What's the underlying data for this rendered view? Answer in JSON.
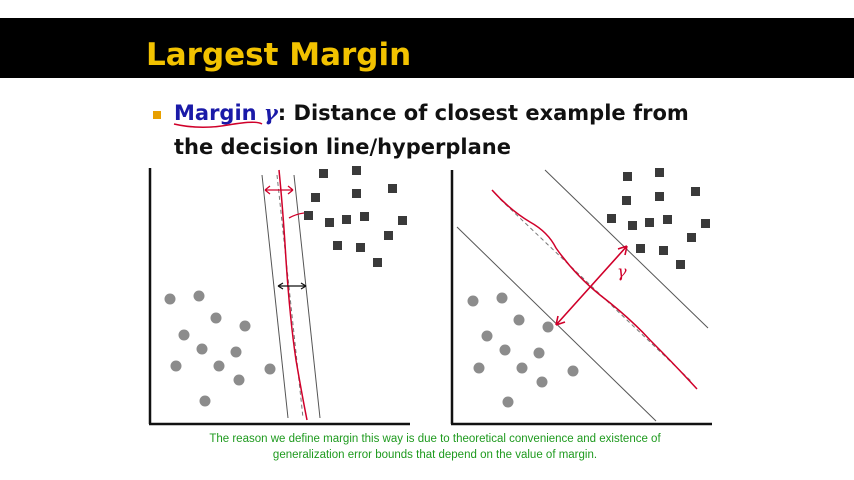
{
  "title": "Largest Margin",
  "bullet": {
    "term": "Margin",
    "symbol": "γ",
    "rest_line1": ": Distance of closest example from",
    "line2": "the decision line/hyperplane"
  },
  "figure_right": {
    "margin_label": "γ"
  },
  "note": {
    "line1": "The reason we define margin this way is due to theoretical convenience and existence of",
    "line2": "generalization error bounds that depend on the value of margin."
  },
  "colors": {
    "title_bar": "#000000",
    "title_text": "#f2c200",
    "term_text": "#1a1aa8",
    "annotation_ink": "#d0002a",
    "footnote_text": "#1e9a1e",
    "square_points": "#3a3a3a",
    "circle_points": "#8c8c8c"
  }
}
